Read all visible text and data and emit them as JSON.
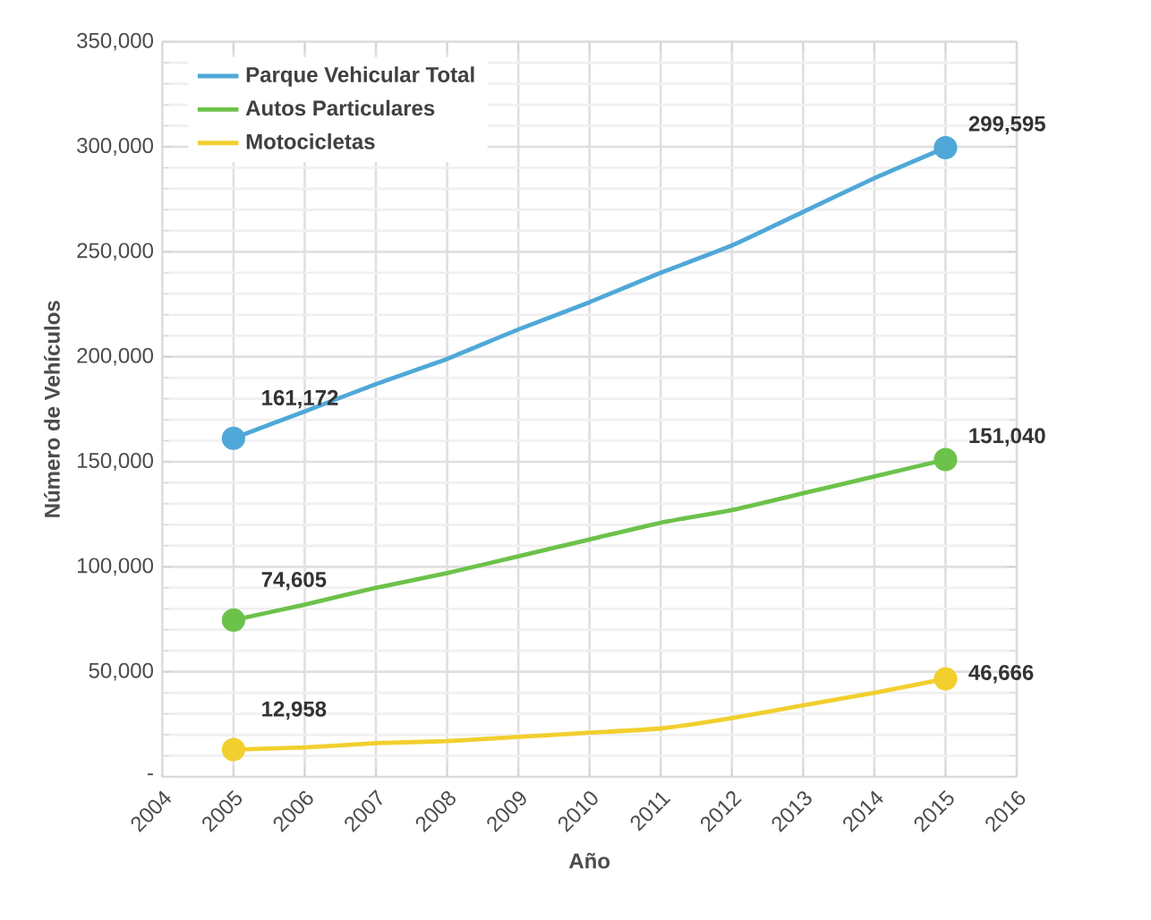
{
  "chart_data": {
    "type": "line",
    "xlabel": "Año",
    "ylabel": "Número de Vehículos",
    "x": [
      2005,
      2006,
      2007,
      2008,
      2009,
      2010,
      2011,
      2012,
      2013,
      2014,
      2015
    ],
    "series": [
      {
        "name": "Parque Vehicular Total",
        "color": "#4fa8d8",
        "values": [
          161172,
          174000,
          187000,
          199000,
          213000,
          226000,
          240000,
          253000,
          269000,
          285000,
          299595
        ],
        "value_labels": [
          "161,172",
          null,
          null,
          null,
          null,
          null,
          null,
          null,
          null,
          null,
          "299,595"
        ]
      },
      {
        "name": "Autos Particulares",
        "color": "#6cc24a",
        "values": [
          74605,
          82000,
          90000,
          97000,
          105000,
          113000,
          121000,
          127000,
          135000,
          143000,
          151040
        ],
        "value_labels": [
          "74,605",
          null,
          null,
          null,
          null,
          null,
          null,
          null,
          null,
          null,
          "151,040"
        ]
      },
      {
        "name": "Motocicletas",
        "color": "#f2cf2e",
        "values": [
          12958,
          14000,
          16000,
          17000,
          19000,
          21000,
          23000,
          28000,
          34000,
          40000,
          46666
        ],
        "value_labels": [
          "12,958",
          null,
          null,
          null,
          null,
          null,
          null,
          null,
          null,
          null,
          "46,666"
        ]
      }
    ],
    "xlim": [
      2004,
      2016
    ],
    "xticks": [
      2004,
      2005,
      2006,
      2007,
      2008,
      2009,
      2010,
      2011,
      2012,
      2013,
      2014,
      2015,
      2016
    ],
    "ylim": [
      0,
      350000
    ],
    "yticks": [
      {
        "value": 0,
        "label": "-"
      },
      {
        "value": 50000,
        "label": "50,000"
      },
      {
        "value": 100000,
        "label": "100,000"
      },
      {
        "value": 150000,
        "label": "150,000"
      },
      {
        "value": 200000,
        "label": "200,000"
      },
      {
        "value": 250000,
        "label": "250,000"
      },
      {
        "value": 300000,
        "label": "300,000"
      },
      {
        "value": 350000,
        "label": "350,000"
      }
    ],
    "grid": true,
    "legend": "top left",
    "line_style": "solid"
  }
}
